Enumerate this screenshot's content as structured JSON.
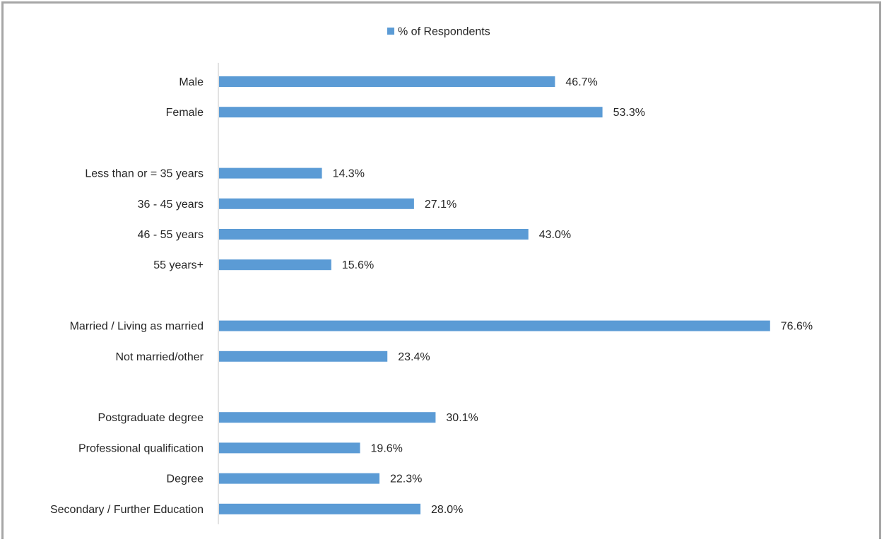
{
  "chart_data": {
    "type": "bar",
    "orientation": "horizontal",
    "title": "",
    "xlabel": "",
    "ylabel": "",
    "xlim": [
      0,
      77
    ],
    "grid": false,
    "legend": {
      "position": "top",
      "label": "% of Respondents"
    },
    "categories": [
      "Male",
      "Female",
      "",
      "Less than or = 35 years",
      "36 - 45 years",
      "46 - 55 years",
      "55 years+",
      "",
      "Married / Living as married",
      "Not married/other",
      "",
      "Postgraduate degree",
      "Professional qualification",
      "Degree",
      "Secondary / Further Education"
    ],
    "series": [
      {
        "name": "% of Respondents",
        "color": "#5b9bd5",
        "values": [
          46.7,
          53.3,
          null,
          14.3,
          27.1,
          43.0,
          15.6,
          null,
          76.6,
          23.4,
          null,
          30.1,
          19.6,
          22.3,
          28.0
        ],
        "labels": [
          "46.7%",
          "53.3%",
          "",
          "14.3%",
          "27.1%",
          "43.0%",
          "15.6%",
          "",
          "76.6%",
          "23.4%",
          "",
          "30.1%",
          "19.6%",
          "22.3%",
          "28.0%"
        ]
      }
    ],
    "colors": {
      "bar": "#5b9bd5",
      "axis": "#d9d9d9",
      "text": "#262626"
    }
  }
}
